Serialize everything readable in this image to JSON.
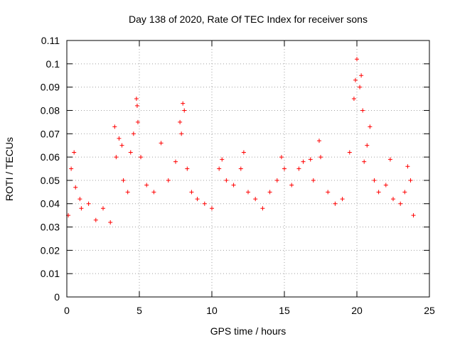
{
  "chart_data": {
    "type": "scatter",
    "title": "Day 138 of 2020, Rate Of TEC Index for receiver sons",
    "xlabel": "GPS time / hours",
    "ylabel": "ROTI / TECUs",
    "xlim": [
      0,
      25
    ],
    "ylim": [
      0,
      0.11
    ],
    "xticks": [
      0,
      5,
      10,
      15,
      20,
      25
    ],
    "xtick_labels": [
      "0",
      "5",
      "10",
      "15",
      "20",
      "25"
    ],
    "yticks": [
      0,
      0.01,
      0.02,
      0.03,
      0.04,
      0.05,
      0.06,
      0.07,
      0.08,
      0.09,
      0.1,
      0.11
    ],
    "ytick_labels": [
      "0",
      "0.01",
      "0.02",
      "0.03",
      "0.04",
      "0.05",
      "0.06",
      "0.07",
      "0.08",
      "0.09",
      "0.1",
      "0.11"
    ],
    "grid": true,
    "marker": "plus",
    "color": "#ff0000",
    "series": [
      {
        "points": [
          [
            0.1,
            0.035
          ],
          [
            0.3,
            0.055
          ],
          [
            0.5,
            0.062
          ],
          [
            0.6,
            0.047
          ],
          [
            0.9,
            0.042
          ],
          [
            1.0,
            0.038
          ],
          [
            1.5,
            0.04
          ],
          [
            2.0,
            0.033
          ],
          [
            2.5,
            0.038
          ],
          [
            3.0,
            0.032
          ],
          [
            3.3,
            0.073
          ],
          [
            3.4,
            0.06
          ],
          [
            3.6,
            0.068
          ],
          [
            3.8,
            0.065
          ],
          [
            3.9,
            0.05
          ],
          [
            4.2,
            0.045
          ],
          [
            4.4,
            0.062
          ],
          [
            4.6,
            0.07
          ],
          [
            4.8,
            0.085
          ],
          [
            4.85,
            0.082
          ],
          [
            4.9,
            0.075
          ],
          [
            5.1,
            0.06
          ],
          [
            5.5,
            0.048
          ],
          [
            6.0,
            0.045
          ],
          [
            6.5,
            0.066
          ],
          [
            7.0,
            0.05
          ],
          [
            7.5,
            0.058
          ],
          [
            7.8,
            0.075
          ],
          [
            7.9,
            0.07
          ],
          [
            8.0,
            0.083
          ],
          [
            8.1,
            0.08
          ],
          [
            8.3,
            0.055
          ],
          [
            8.6,
            0.045
          ],
          [
            9.0,
            0.042
          ],
          [
            9.5,
            0.04
          ],
          [
            10.0,
            0.038
          ],
          [
            10.5,
            0.055
          ],
          [
            10.7,
            0.059
          ],
          [
            11.0,
            0.05
          ],
          [
            11.5,
            0.048
          ],
          [
            12.0,
            0.055
          ],
          [
            12.2,
            0.062
          ],
          [
            12.5,
            0.045
          ],
          [
            13.0,
            0.042
          ],
          [
            13.5,
            0.038
          ],
          [
            14.0,
            0.045
          ],
          [
            14.5,
            0.05
          ],
          [
            14.8,
            0.06
          ],
          [
            15.0,
            0.055
          ],
          [
            15.5,
            0.048
          ],
          [
            16.0,
            0.055
          ],
          [
            16.3,
            0.058
          ],
          [
            16.8,
            0.059
          ],
          [
            17.0,
            0.05
          ],
          [
            17.4,
            0.067
          ],
          [
            17.5,
            0.06
          ],
          [
            18.0,
            0.045
          ],
          [
            18.5,
            0.04
          ],
          [
            19.0,
            0.042
          ],
          [
            19.5,
            0.062
          ],
          [
            19.8,
            0.085
          ],
          [
            19.9,
            0.093
          ],
          [
            20.0,
            0.102
          ],
          [
            20.2,
            0.09
          ],
          [
            20.3,
            0.095
          ],
          [
            20.4,
            0.08
          ],
          [
            20.5,
            0.058
          ],
          [
            20.7,
            0.065
          ],
          [
            20.9,
            0.073
          ],
          [
            21.2,
            0.05
          ],
          [
            21.5,
            0.045
          ],
          [
            22.0,
            0.048
          ],
          [
            22.3,
            0.059
          ],
          [
            22.5,
            0.042
          ],
          [
            23.0,
            0.04
          ],
          [
            23.3,
            0.045
          ],
          [
            23.5,
            0.056
          ],
          [
            23.7,
            0.05
          ],
          [
            23.9,
            0.035
          ]
        ]
      }
    ]
  }
}
